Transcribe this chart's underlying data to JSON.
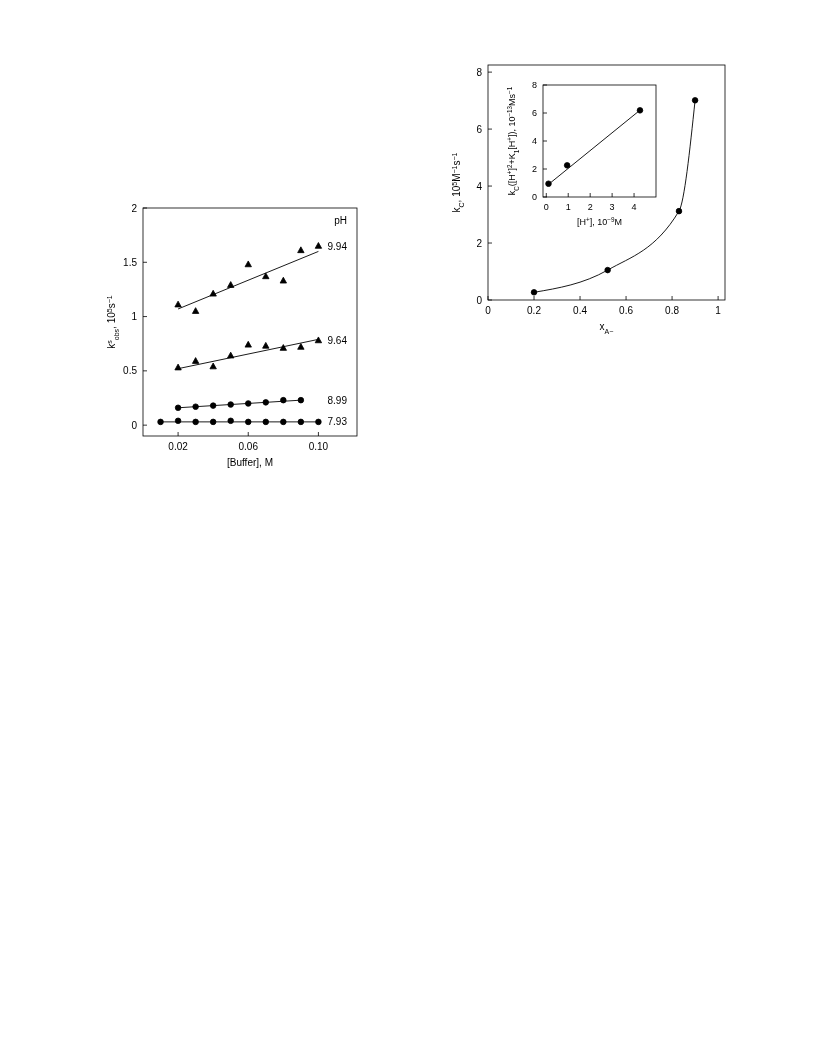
{
  "chart_data": [
    {
      "type": "scatter",
      "xlabel": "[Buffer], M",
      "ylabel": "k$^{s}$$_{obs}$, 10$^{5}$s$^{−1}$",
      "legend_title": "pH",
      "xlim": [
        0,
        0.122
      ],
      "ylim": [
        -0.1,
        2
      ],
      "xticks": [
        0.02,
        0.06,
        {
          "value": 0.1,
          "label": "0.10"
        }
      ],
      "yticks": [
        0,
        0.5,
        1,
        1.5,
        2
      ],
      "series": [
        {
          "name": "9.94",
          "color": "#000000",
          "marker": "triangle",
          "x": [
            0.02,
            0.03,
            0.04,
            0.05,
            0.06,
            0.07,
            0.08,
            0.09,
            0.1
          ],
          "values": [
            1.11,
            1.05,
            1.21,
            1.29,
            1.48,
            1.37,
            1.33,
            1.61,
            1.65
          ]
        },
        {
          "type": "line",
          "color": "#000000",
          "marker": "none",
          "x": [
            0.02,
            0.1
          ],
          "values": [
            1.07,
            1.6
          ]
        },
        {
          "name": "9.64",
          "color": "#000000",
          "marker": "triangle",
          "x": [
            0.02,
            0.03,
            0.04,
            0.05,
            0.06,
            0.07,
            0.08,
            0.09,
            0.1
          ],
          "values": [
            0.53,
            0.59,
            0.54,
            0.64,
            0.74,
            0.73,
            0.71,
            0.72,
            0.78
          ]
        },
        {
          "type": "line",
          "color": "#000000",
          "marker": "none",
          "x": [
            0.02,
            0.1
          ],
          "values": [
            0.52,
            0.79
          ]
        },
        {
          "name": "8.99",
          "color": "#000000",
          "marker": "circle",
          "x": [
            0.02,
            0.03,
            0.04,
            0.05,
            0.06,
            0.07,
            0.08,
            0.09
          ],
          "values": [
            0.16,
            0.17,
            0.18,
            0.19,
            0.2,
            0.21,
            0.23,
            0.23
          ]
        },
        {
          "type": "line",
          "color": "#000000",
          "marker": "none",
          "x": [
            0.02,
            0.09
          ],
          "values": [
            0.16,
            0.23
          ]
        },
        {
          "name": "7.93",
          "color": "#000000",
          "marker": "circle",
          "x": [
            0.01,
            0.02,
            0.03,
            0.04,
            0.05,
            0.06,
            0.07,
            0.08,
            0.09,
            0.1
          ],
          "values": [
            0.03,
            0.04,
            0.03,
            0.03,
            0.04,
            0.03,
            0.03,
            0.03,
            0.03,
            0.03
          ]
        },
        {
          "type": "line",
          "color": "#000000",
          "marker": "none",
          "x": [
            0.01,
            0.1
          ],
          "values": [
            0.03,
            0.03
          ]
        }
      ]
    },
    {
      "type": "scatter",
      "xlabel": "x$_{A−}$",
      "ylabel": "k$_{C}$, 10$^{5}$M$^{−1}$s$^{−1}$",
      "xlim": [
        0,
        1.03
      ],
      "ylim": [
        0,
        8.25
      ],
      "xticks": [
        0,
        0.2,
        0.4,
        0.6,
        0.8,
        1
      ],
      "yticks": [
        0,
        2,
        4,
        6,
        8
      ],
      "series": [
        {
          "type": "line",
          "color": "#000000",
          "marker": "none",
          "x": [
            0.2,
            0.52,
            0.83,
            0.9
          ],
          "values": [
            0.27,
            1.05,
            3.12,
            7.01
          ]
        },
        {
          "color": "#000000",
          "marker": "circle",
          "x": [
            0.2,
            0.52,
            0.83,
            0.9
          ],
          "values": [
            0.27,
            1.05,
            3.12,
            7.01
          ]
        }
      ]
    },
    {
      "type": "scatter",
      "xlabel": "[H$^{+}$], 10$^{−9}$M",
      "ylabel": "k$_{C}$([H$^{+}$]$^{2}$+K$_{1}$[H$^{+}$]), 10$^{−13}$Ms$^{−1}$",
      "xlim": [
        -0.15,
        5
      ],
      "ylim": [
        0,
        8
      ],
      "xticks": [
        0,
        1,
        2,
        3,
        4
      ],
      "yticks": [
        0,
        2,
        4,
        6,
        8
      ],
      "series": [
        {
          "type": "line",
          "color": "#000000",
          "marker": "none",
          "x": [
            0.1,
            4.27
          ],
          "values": [
            0.9,
            6.2
          ]
        },
        {
          "color": "#000000",
          "marker": "circle",
          "x": [
            0.1,
            0.95,
            4.27
          ],
          "values": [
            0.95,
            2.26,
            6.19
          ]
        }
      ]
    }
  ]
}
